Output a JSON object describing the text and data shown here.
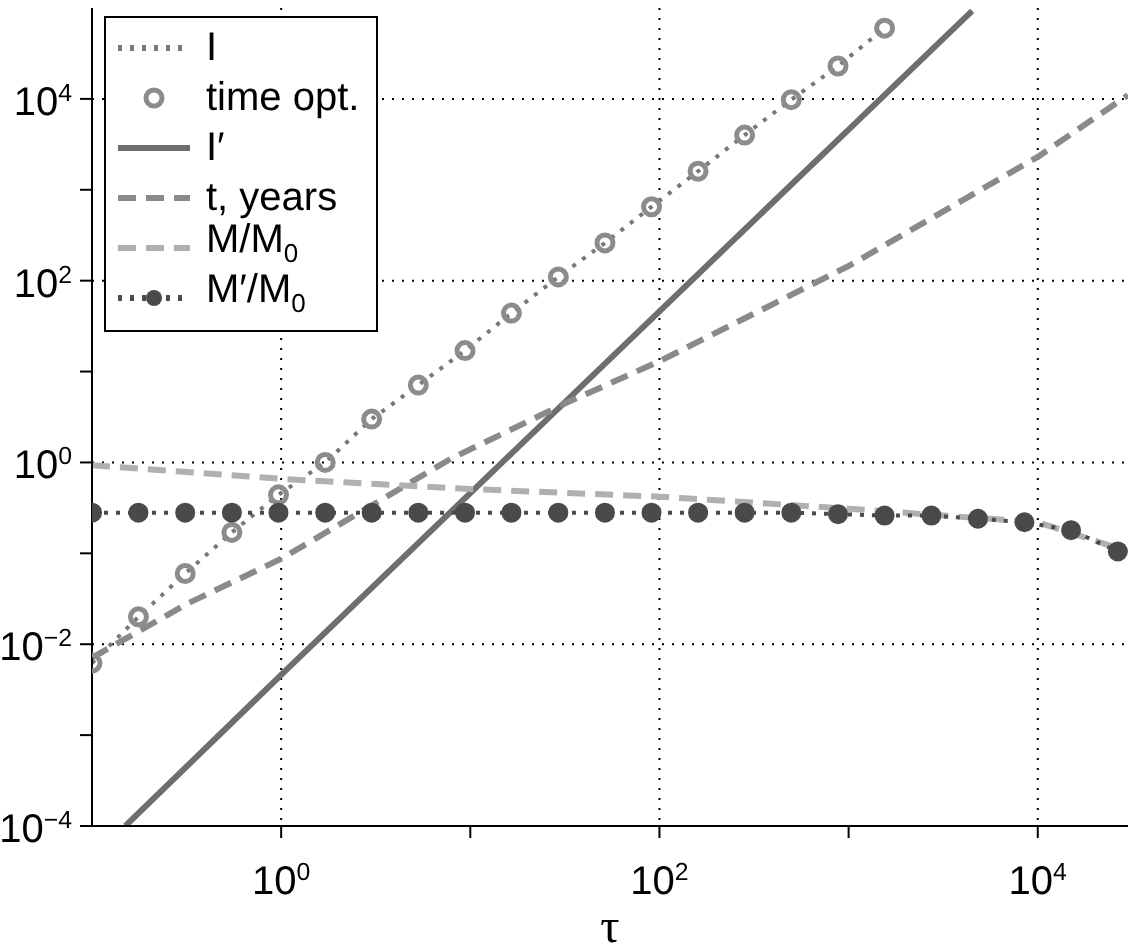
{
  "chart_data": {
    "type": "line",
    "xlabel": "τ",
    "log": "xy",
    "grid": true,
    "legend": "top left",
    "xlim": [
      0.1,
      30000
    ],
    "ylim": [
      0.0001,
      100000
    ],
    "xticks": [
      {
        "value": 1,
        "label": "10$^{0}$"
      },
      {
        "value": 10,
        "label": null
      },
      {
        "value": 100,
        "label": "10$^{2}$"
      },
      {
        "value": 1000,
        "label": null
      },
      {
        "value": 10000,
        "label": "10$^{4}$"
      }
    ],
    "yticks": [
      {
        "value": 0.0001,
        "label": "10$^{−4}$"
      },
      {
        "value": 0.001,
        "label": null
      },
      {
        "value": 0.01,
        "label": "10$^{−2}$"
      },
      {
        "value": 0.1,
        "label": null
      },
      {
        "value": 1,
        "label": "10$^{0}$"
      },
      {
        "value": 10,
        "label": null
      },
      {
        "value": 100,
        "label": "10$^{2}$"
      },
      {
        "value": 1000,
        "label": null
      },
      {
        "value": 10000,
        "label": "10$^{4}$"
      }
    ],
    "series": [
      {
        "name": "I",
        "line_style": "dotted",
        "marker": "none",
        "color": "#777777",
        "x": [
          0.1,
          0.176,
          0.311,
          0.549,
          0.968,
          1.71,
          3.01,
          5.31,
          9.38,
          16.5,
          29.2,
          51.5,
          90.8,
          160,
          282,
          498,
          879,
          1550
        ],
        "values": [
          0.0062,
          0.02,
          0.06,
          0.17,
          0.44,
          1.0,
          3.0,
          7.1,
          17,
          44,
          110,
          260,
          650,
          1600,
          4000,
          9800,
          23000,
          60000
        ]
      },
      {
        "name": "time opt.",
        "type": "scatter",
        "marker": "circle",
        "color": "#8c8c8c",
        "x": [
          0.1,
          0.176,
          0.311,
          0.549,
          0.968,
          1.71,
          3.01,
          5.31,
          9.38,
          16.5,
          29.2,
          51.5,
          90.8,
          160,
          282,
          498,
          879,
          1550
        ],
        "values": [
          0.0062,
          0.02,
          0.06,
          0.17,
          0.44,
          1.0,
          3.0,
          7.1,
          17,
          44,
          110,
          260,
          650,
          1600,
          4000,
          9800,
          23000,
          60000
        ]
      },
      {
        "name": "I′",
        "line_style": "solid",
        "marker": "none",
        "color": "#6e6e6e",
        "x": [
          0.15,
          1,
          10,
          100,
          1000,
          4500
        ],
        "values": [
          0.0001,
          0.0046,
          0.46,
          46,
          4600,
          93000
        ]
      },
      {
        "name": "t, years",
        "line_style": "dashed",
        "marker": "none",
        "color": "#8a8a8a",
        "x": [
          0.1,
          0.32,
          1,
          7.9,
          32,
          100,
          1000,
          10000,
          30000
        ],
        "values": [
          0.0071,
          0.028,
          0.087,
          1.1,
          4.5,
          13,
          145,
          2300,
          11000
        ]
      },
      {
        "name": "M/M$_{0}$",
        "line_style": "dashed",
        "marker": "none",
        "color": "#b0b0b0",
        "x": [
          0.1,
          1,
          10,
          100,
          1000,
          3200,
          10000,
          30000
        ],
        "values": [
          0.93,
          0.66,
          0.51,
          0.42,
          0.31,
          0.26,
          0.22,
          0.105
        ]
      },
      {
        "name": "M′/M$_{0}$",
        "line_style": "dotted",
        "marker": "circle",
        "color": "#4a4a4a",
        "x": [
          0.1,
          0.176,
          0.311,
          0.549,
          0.968,
          1.71,
          3.01,
          5.31,
          9.38,
          16.5,
          29.2,
          51.5,
          90.8,
          160,
          282,
          498,
          879,
          1550,
          2740,
          4830,
          8510,
          15000,
          26500
        ],
        "values": [
          0.28,
          0.28,
          0.28,
          0.28,
          0.28,
          0.28,
          0.28,
          0.28,
          0.28,
          0.28,
          0.28,
          0.28,
          0.28,
          0.28,
          0.28,
          0.28,
          0.27,
          0.26,
          0.26,
          0.24,
          0.22,
          0.18,
          0.105
        ]
      }
    ]
  }
}
